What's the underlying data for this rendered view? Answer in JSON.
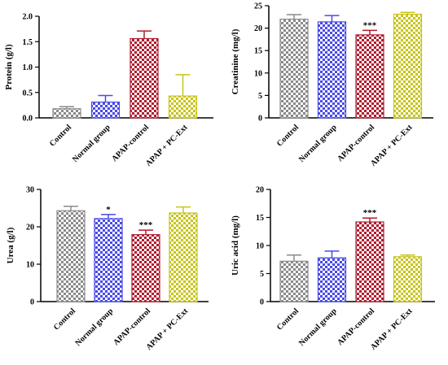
{
  "colors": {
    "checker_dark": [
      "#8a8a8a",
      "#4a4ae6",
      "#b01c2e",
      "#c8c41a"
    ],
    "checker_light": [
      "#ffffff",
      "#ffffff",
      "#ffffff",
      "#ffffff"
    ],
    "axis": "#000000"
  },
  "chart_data": [
    {
      "type": "bar",
      "categories": [
        "Control",
        "Normal group",
        "APAP-control",
        "APAP + PC-Ext"
      ],
      "values": [
        0.18,
        0.31,
        1.56,
        0.43
      ],
      "errors": [
        0.04,
        0.13,
        0.15,
        0.42
      ],
      "significance": [
        "",
        "",
        "",
        ""
      ],
      "ylabel": "Protein (g/l)",
      "ylim": [
        0,
        2.0
      ],
      "yticks": [
        "0.0",
        "0.5",
        "1.0",
        "1.5",
        "2.0"
      ],
      "grid": false
    },
    {
      "type": "bar",
      "categories": [
        "Control",
        "Normal group",
        "APAP-control",
        "APAP + PC-Ext"
      ],
      "values": [
        22,
        21.4,
        18.5,
        23.1
      ],
      "errors": [
        1.0,
        1.4,
        1.0,
        0.4
      ],
      "significance": [
        "",
        "",
        "***",
        ""
      ],
      "ylabel": "Creatinine (mg/l)",
      "ylim": [
        0,
        25
      ],
      "yticks": [
        "0",
        "5",
        "10",
        "15",
        "20",
        "25"
      ],
      "grid": false
    },
    {
      "type": "bar",
      "categories": [
        "Control",
        "Normal group",
        "APAP-control",
        "APAP + PC-Ext"
      ],
      "values": [
        24.3,
        22.2,
        17.9,
        23.7
      ],
      "errors": [
        1.2,
        1.1,
        1.2,
        1.6
      ],
      "significance": [
        "",
        "*",
        "***",
        ""
      ],
      "ylabel": "Urea (g/l)",
      "ylim": [
        0,
        30
      ],
      "yticks": [
        "0",
        "10",
        "20",
        "30"
      ],
      "grid": false
    },
    {
      "type": "bar",
      "categories": [
        "Control",
        "Normal group",
        "APAP-control",
        "APAP + PC-Ext"
      ],
      "values": [
        7.2,
        7.8,
        14.2,
        8.0
      ],
      "errors": [
        1.1,
        1.2,
        0.7,
        0.3
      ],
      "significance": [
        "",
        "",
        "***",
        ""
      ],
      "ylabel": "Uric acid (mg/l)",
      "ylim": [
        0,
        20
      ],
      "yticks": [
        "0",
        "5",
        "10",
        "15",
        "20"
      ],
      "grid": false
    }
  ]
}
